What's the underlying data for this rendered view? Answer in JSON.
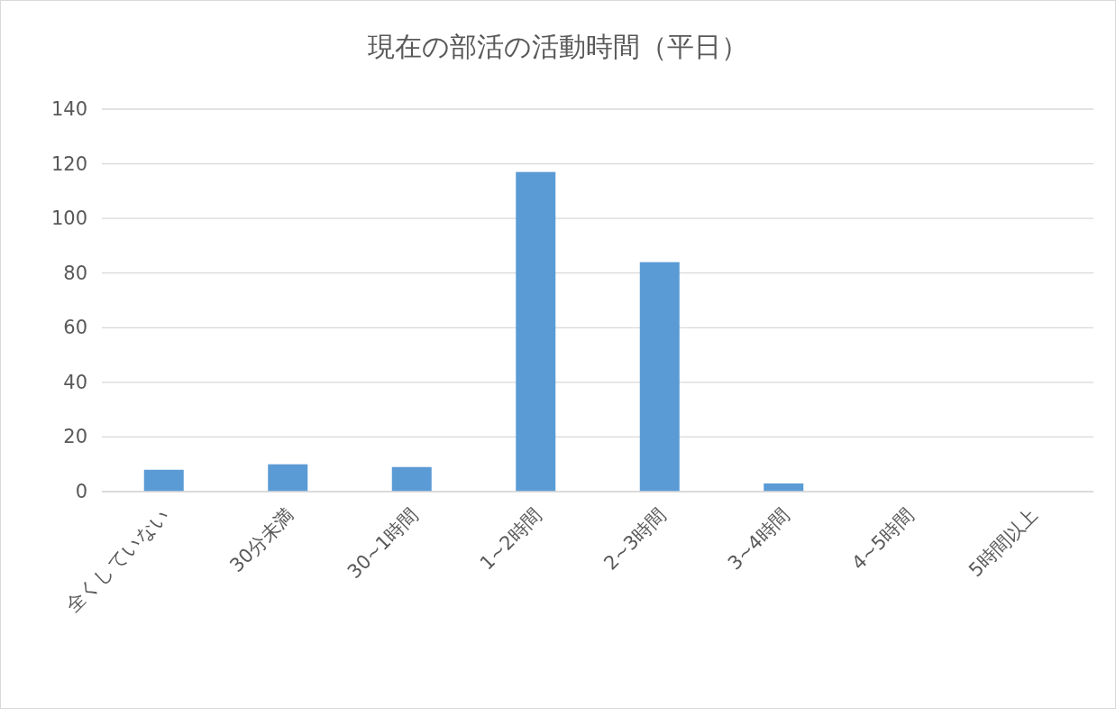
{
  "chart_data": {
    "type": "bar",
    "title": "現在の部活の活動時間（平日）",
    "categories": [
      "全くしていない",
      "30分未満",
      "30~1時間",
      "1~2時間",
      "2~3時間",
      "3~4時間",
      "4~5時間",
      "5時間以上"
    ],
    "values": [
      8,
      10,
      9,
      117,
      84,
      3,
      0,
      0
    ],
    "color": "#5b9bd5",
    "ylim": [
      0,
      140
    ],
    "yticks": [
      0,
      20,
      40,
      60,
      80,
      100,
      120,
      140
    ],
    "grid": "y"
  }
}
